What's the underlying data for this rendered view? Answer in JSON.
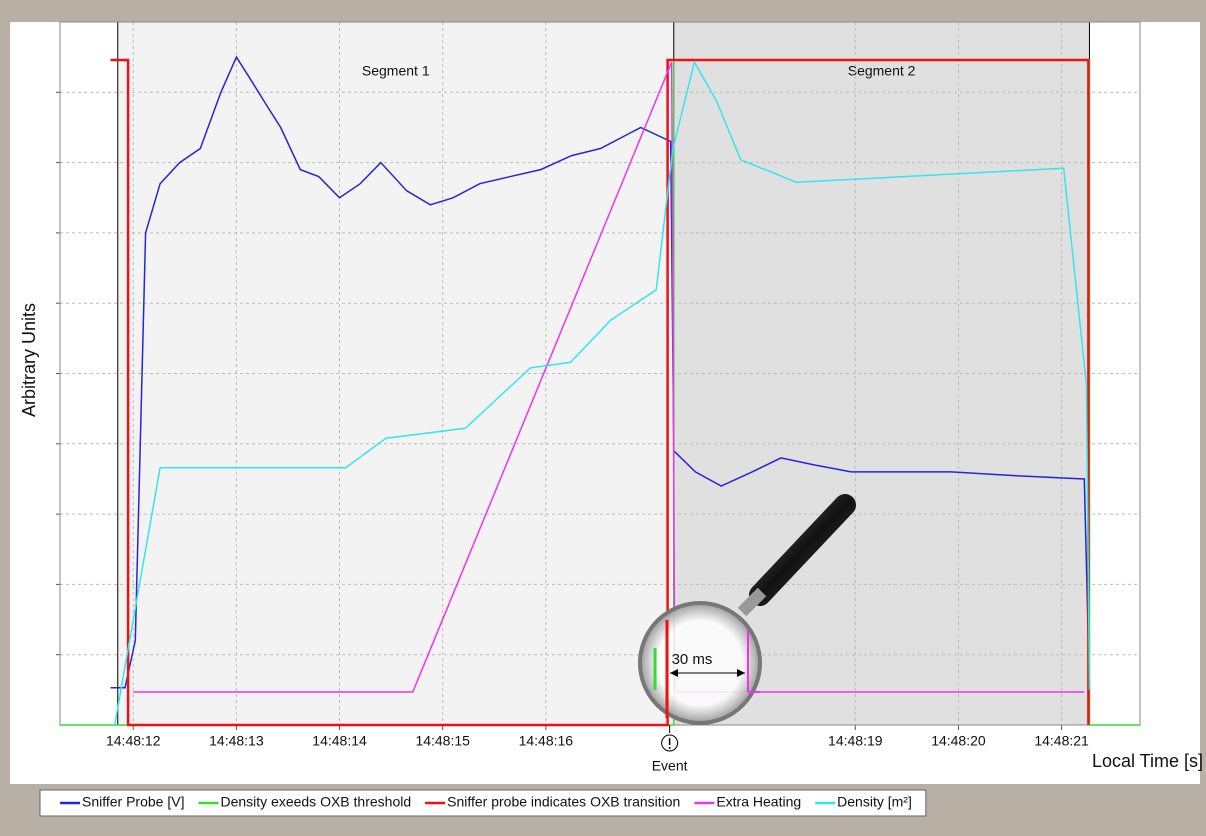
{
  "chart_data": {
    "type": "line",
    "y_label": "Arbitrary Units",
    "x_label": "Local Time [s]",
    "xlim": [
      11.29,
      21.76
    ],
    "ylim": [
      0,
      100
    ],
    "xticks": [
      {
        "value": 12,
        "label": "14:48:12"
      },
      {
        "value": 13,
        "label": "14:48:13"
      },
      {
        "value": 14,
        "label": "14:48:14"
      },
      {
        "value": 15,
        "label": "14:48:15"
      },
      {
        "value": 16,
        "label": "14:48:16"
      },
      {
        "value": 19,
        "label": "14:48:19"
      },
      {
        "value": 20,
        "label": "14:48:20"
      },
      {
        "value": 21,
        "label": "14:48:21"
      }
    ],
    "yticks": [
      10,
      20,
      30,
      40,
      50,
      60,
      70,
      80,
      90
    ],
    "grid": true,
    "legend": "bottom",
    "segments": [
      {
        "label": "Segment 1",
        "start": 11.85,
        "end": 17.24,
        "color": "#f3f3f3"
      },
      {
        "label": "Segment 2",
        "start": 17.24,
        "end": 21.27,
        "color": "#e0e0e0"
      }
    ],
    "event": {
      "label": "Event",
      "x": 17.2
    },
    "zoom_label": "30 ms",
    "series": [
      {
        "name": "Sniffer Probe [V]",
        "color": "#2626d8",
        "x": [
          11.78,
          11.92,
          12.02,
          12.12,
          12.26,
          12.45,
          12.65,
          12.85,
          13.0,
          13.13,
          13.3,
          13.43,
          13.62,
          13.8,
          14.0,
          14.2,
          14.4,
          14.65,
          14.88,
          15.1,
          15.36,
          15.65,
          15.95,
          16.25,
          16.53,
          16.92,
          17.21,
          17.24,
          17.45,
          17.7,
          18.0,
          18.28,
          18.6,
          18.96,
          19.4,
          19.93,
          20.5,
          21.22,
          21.27
        ],
        "values": [
          5.3,
          5.3,
          12,
          70,
          77,
          80,
          82,
          90,
          95,
          92,
          88,
          85,
          79,
          78,
          75,
          77,
          80,
          76,
          74,
          75,
          77,
          78,
          79,
          81,
          82,
          85,
          83,
          39,
          36,
          34,
          36,
          38,
          37,
          36,
          36,
          36,
          35.5,
          35,
          5
        ]
      },
      {
        "name": "Density exeeds OXB threshold",
        "color": "#33dd33",
        "x": [
          11.29,
          17.24,
          17.24,
          21.27,
          21.27,
          21.76
        ],
        "values": [
          0,
          0,
          94.6,
          94.6,
          0,
          0
        ]
      },
      {
        "name": "Sniffer probe indicates OXB transition",
        "color": "#ee1111",
        "x": [
          11.78,
          11.95,
          11.95,
          17.18,
          17.18,
          21.26,
          21.26
        ],
        "values": [
          94.6,
          94.6,
          0,
          0,
          94.6,
          94.6,
          0
        ]
      },
      {
        "name": "Extra Heating",
        "color": "#ee33ee",
        "x": [
          12.0,
          14.71,
          17.22,
          17.25,
          21.22
        ],
        "values": [
          4.7,
          4.7,
          94.3,
          4.7,
          4.7
        ]
      },
      {
        "name": "Density [m²]",
        "color": "#33e6ee",
        "x": [
          11.82,
          12.26,
          14.06,
          14.45,
          15.22,
          15.85,
          16.24,
          16.63,
          17.07,
          17.23,
          17.44,
          17.65,
          17.89,
          18.43,
          21.02,
          21.24,
          21.27
        ],
        "values": [
          0,
          36.6,
          36.6,
          40.8,
          42.2,
          50.8,
          51.6,
          57.6,
          61.9,
          81.8,
          94.3,
          88.9,
          80.4,
          77.2,
          79.2,
          48.4,
          5
        ]
      }
    ]
  }
}
